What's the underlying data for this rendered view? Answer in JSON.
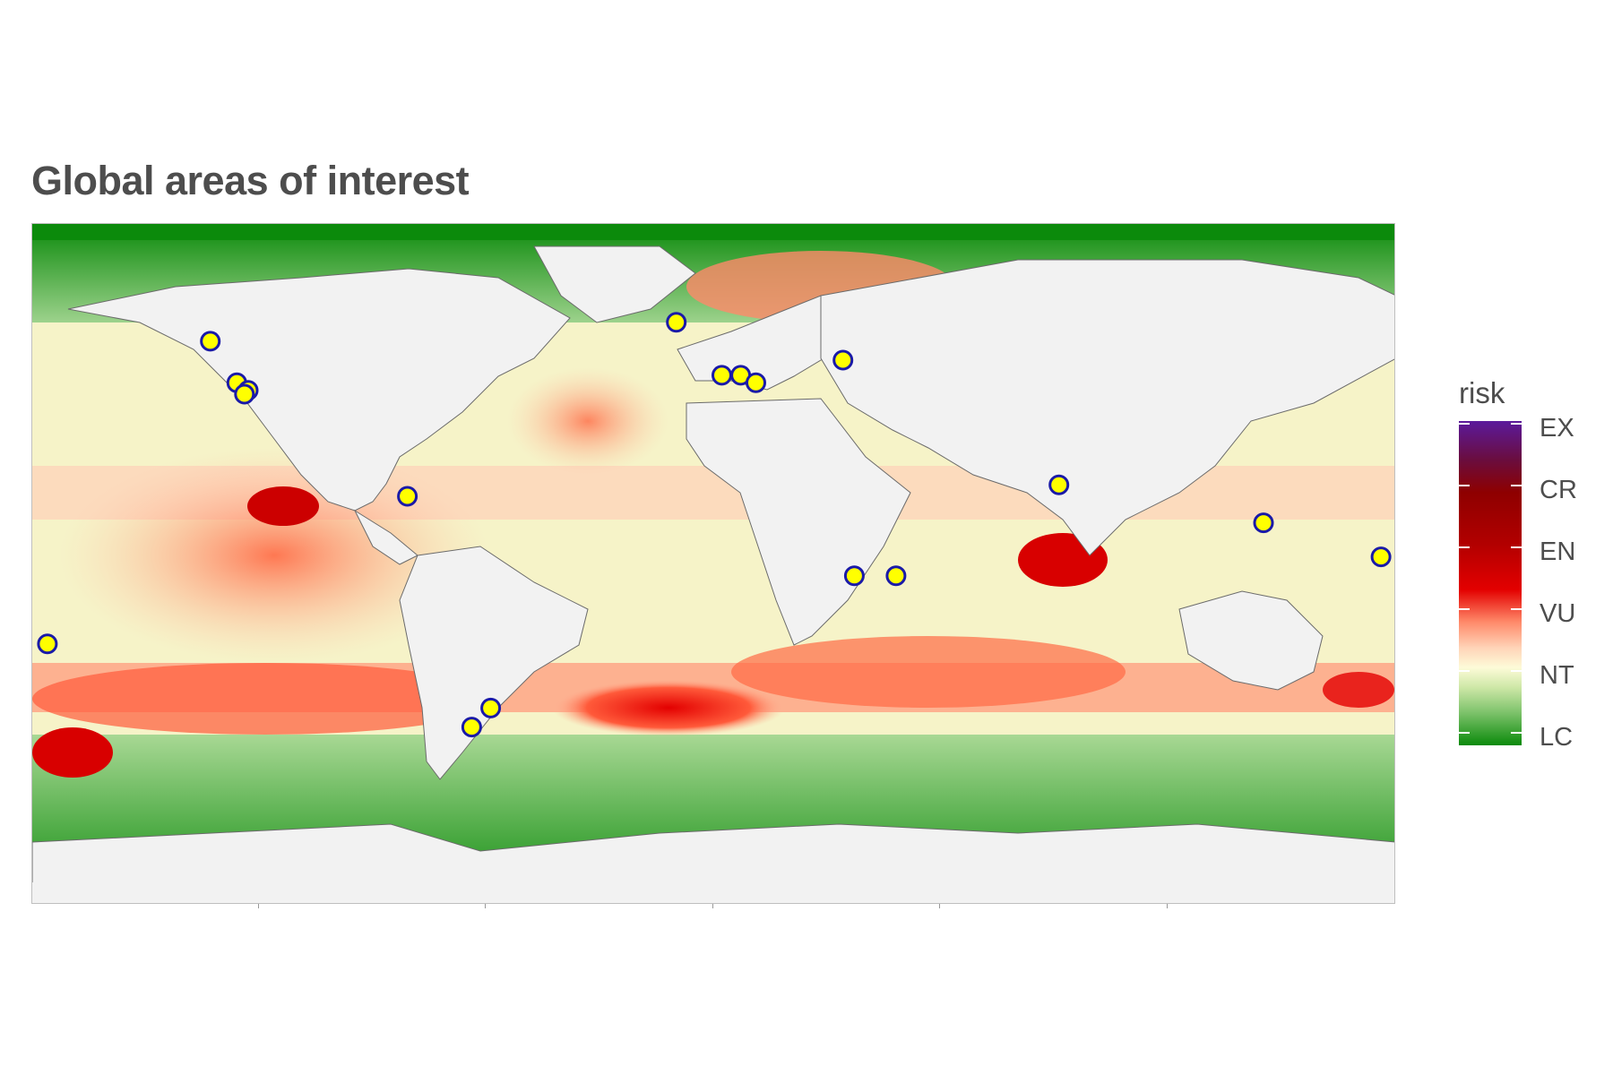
{
  "title": "Global areas of interest",
  "legend": {
    "title": "risk",
    "levels": [
      "EX",
      "CR",
      "EN",
      "VU",
      "NT",
      "LC"
    ],
    "colors": {
      "EX": "#5b1a9c",
      "CR": "#8e0000",
      "EN": "#b20000",
      "VU": "#e30000",
      "NT": "#fdfbd8",
      "LC": "#0b8a0b"
    }
  },
  "colors": {
    "land": "#f2f2f2",
    "marker_fill": "#ffff00",
    "marker_stroke": "#1a1aa8"
  },
  "markers": [
    {
      "lon": -133,
      "lat": 59
    },
    {
      "lon": -126,
      "lat": 48
    },
    {
      "lon": -123,
      "lat": 46
    },
    {
      "lon": -124,
      "lat": 45
    },
    {
      "lon": -81,
      "lat": 18
    },
    {
      "lon": -64,
      "lat": -43
    },
    {
      "lon": -59,
      "lat": -38
    },
    {
      "lon": -10,
      "lat": 64
    },
    {
      "lon": 2,
      "lat": 50
    },
    {
      "lon": 7,
      "lat": 50
    },
    {
      "lon": 11,
      "lat": 48
    },
    {
      "lon": 34,
      "lat": 54
    },
    {
      "lon": 37,
      "lat": -3
    },
    {
      "lon": 48,
      "lat": -3
    },
    {
      "lon": 91,
      "lat": 21
    },
    {
      "lon": 145,
      "lat": 11
    },
    {
      "lon": 176,
      "lat": 2
    },
    {
      "lon": -176,
      "lat": -21
    }
  ]
}
